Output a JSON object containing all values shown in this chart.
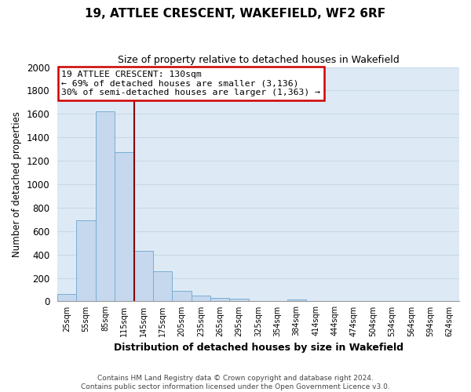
{
  "title": "19, ATTLEE CRESCENT, WAKEFIELD, WF2 6RF",
  "subtitle": "Size of property relative to detached houses in Wakefield",
  "xlabel": "Distribution of detached houses by size in Wakefield",
  "ylabel": "Number of detached properties",
  "bar_labels": [
    "25sqm",
    "55sqm",
    "85sqm",
    "115sqm",
    "145sqm",
    "175sqm",
    "205sqm",
    "235sqm",
    "265sqm",
    "295sqm",
    "325sqm",
    "354sqm",
    "384sqm",
    "414sqm",
    "444sqm",
    "474sqm",
    "504sqm",
    "534sqm",
    "564sqm",
    "594sqm",
    "624sqm"
  ],
  "bar_values": [
    65,
    695,
    1625,
    1275,
    430,
    255,
    88,
    52,
    28,
    20,
    0,
    0,
    15,
    0,
    0,
    0,
    0,
    0,
    0,
    0,
    0
  ],
  "bar_color": "#c5d8ee",
  "bar_edge_color": "#7aadd4",
  "grid_color": "#c8d8e8",
  "ylim": [
    0,
    2000
  ],
  "yticks": [
    0,
    200,
    400,
    600,
    800,
    1000,
    1200,
    1400,
    1600,
    1800,
    2000
  ],
  "vline_color": "#8b0000",
  "annotation_title": "19 ATTLEE CRESCENT: 130sqm",
  "annotation_line1": "← 69% of detached houses are smaller (3,136)",
  "annotation_line2": "30% of semi-detached houses are larger (1,363) →",
  "annotation_box_color": "#ffffff",
  "annotation_box_edge": "#cc0000",
  "footer_line1": "Contains HM Land Registry data © Crown copyright and database right 2024.",
  "footer_line2": "Contains public sector information licensed under the Open Government Licence v3.0.",
  "background_color": "#ffffff",
  "plot_bg_color": "#ddeaf5"
}
